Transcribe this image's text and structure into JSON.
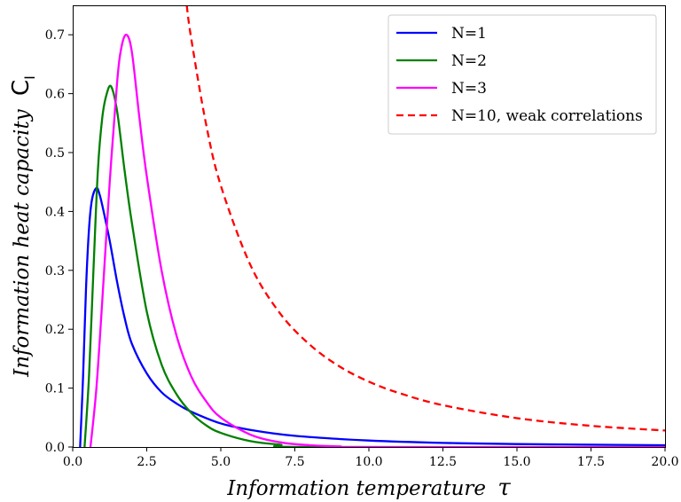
{
  "chart_data": {
    "type": "line",
    "title": "",
    "xlabel": "Information temperature",
    "xlabel_symbol": "τ",
    "ylabel": "Information heat capacity",
    "ylabel_symbol": "C",
    "ylabel_subscript": "I",
    "xlim": [
      0,
      20
    ],
    "ylim": [
      0,
      0.75
    ],
    "x_ticks": [
      "0.0",
      "2.5",
      "5.0",
      "7.5",
      "10.0",
      "12.5",
      "15.0",
      "17.5",
      "20.0"
    ],
    "x_tick_values": [
      0,
      2.5,
      5,
      7.5,
      10,
      12.5,
      15,
      17.5,
      20
    ],
    "y_ticks": [
      "0.0",
      "0.1",
      "0.2",
      "0.3",
      "0.4",
      "0.5",
      "0.6",
      "0.7"
    ],
    "y_tick_values": [
      0,
      0.1,
      0.2,
      0.3,
      0.4,
      0.5,
      0.6,
      0.7
    ],
    "grid": false,
    "legend_position": "top-right",
    "series": [
      {
        "name": "N=1",
        "color": "#0000ff",
        "style": "solid",
        "x": [
          0.25,
          0.35,
          0.45,
          0.55,
          0.65,
          0.8,
          0.9,
          1.0,
          1.25,
          1.5,
          1.75,
          2.0,
          2.5,
          3.0,
          3.5,
          4.0,
          5.0,
          6.0,
          7.5,
          10.0,
          12.5,
          15.0,
          17.5,
          20.0
        ],
        "y": [
          0.0,
          0.12,
          0.27,
          0.37,
          0.42,
          0.44,
          0.43,
          0.41,
          0.35,
          0.28,
          0.22,
          0.175,
          0.125,
          0.093,
          0.074,
          0.06,
          0.04,
          0.029,
          0.019,
          0.011,
          0.007,
          0.005,
          0.004,
          0.003
        ]
      },
      {
        "name": "N=2",
        "color": "#008000",
        "style": "solid",
        "x": [
          0.4,
          0.55,
          0.7,
          0.85,
          1.0,
          1.15,
          1.3,
          1.5,
          1.75,
          2.0,
          2.5,
          3.0,
          3.5,
          4.0,
          4.5,
          5.0,
          6.0,
          7.0,
          8.0,
          20.0
        ],
        "y": [
          0.0,
          0.12,
          0.3,
          0.47,
          0.56,
          0.6,
          0.612,
          0.57,
          0.47,
          0.38,
          0.23,
          0.14,
          0.09,
          0.058,
          0.037,
          0.024,
          0.01,
          0.004,
          0.0,
          0.0
        ]
      },
      {
        "name": "N=3",
        "color": "#ff00ff",
        "style": "solid",
        "x": [
          0.6,
          0.8,
          1.0,
          1.25,
          1.5,
          1.65,
          1.82,
          2.0,
          2.25,
          2.5,
          3.0,
          3.5,
          4.0,
          4.5,
          5.0,
          6.0,
          7.0,
          8.0,
          9.0,
          10.0,
          20.0
        ],
        "y": [
          0.0,
          0.1,
          0.25,
          0.45,
          0.62,
          0.68,
          0.7,
          0.67,
          0.56,
          0.46,
          0.3,
          0.19,
          0.12,
          0.078,
          0.05,
          0.021,
          0.008,
          0.003,
          0.001,
          0.0,
          0.0
        ]
      },
      {
        "name": "N=10, weak correlations",
        "color": "#ff0000",
        "style": "dashed",
        "x": [
          3.85,
          4.0,
          4.5,
          5.0,
          6.0,
          7.0,
          8.0,
          9.0,
          10.0,
          11.0,
          12.5,
          15.0,
          17.5,
          20.0
        ],
        "y": [
          0.75,
          0.694,
          0.549,
          0.444,
          0.309,
          0.227,
          0.174,
          0.137,
          0.111,
          0.092,
          0.071,
          0.049,
          0.036,
          0.028
        ]
      }
    ]
  }
}
